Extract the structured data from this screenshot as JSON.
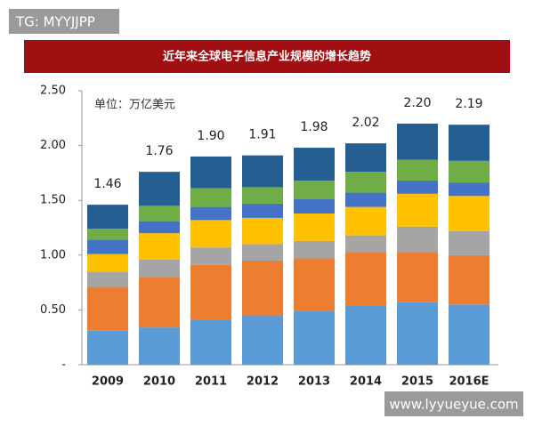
{
  "chart_data": {
    "type": "stacked-bar",
    "title": "近年来全球电子信息产业规模的增长趋势",
    "unit_note": "单位：万亿美元",
    "categories": [
      "2009",
      "2010",
      "2011",
      "2012",
      "2013",
      "2014",
      "2015",
      "2016E"
    ],
    "series": [
      {
        "color": "#5b9bd5",
        "values": [
          0.31,
          0.34,
          0.41,
          0.45,
          0.49,
          0.54,
          0.57,
          0.55
        ]
      },
      {
        "color": "#ed7d31",
        "values": [
          0.4,
          0.46,
          0.5,
          0.5,
          0.48,
          0.49,
          0.46,
          0.45
        ]
      },
      {
        "color": "#a5a5a5",
        "values": [
          0.14,
          0.16,
          0.16,
          0.15,
          0.16,
          0.15,
          0.23,
          0.22
        ]
      },
      {
        "color": "#ffc000",
        "values": [
          0.16,
          0.24,
          0.25,
          0.24,
          0.25,
          0.26,
          0.3,
          0.32
        ]
      },
      {
        "color": "#4472c4",
        "values": [
          0.13,
          0.11,
          0.12,
          0.13,
          0.13,
          0.13,
          0.12,
          0.12
        ]
      },
      {
        "color": "#70ad47",
        "values": [
          0.1,
          0.14,
          0.17,
          0.15,
          0.17,
          0.19,
          0.19,
          0.2
        ]
      },
      {
        "color": "#255e91",
        "values": [
          0.22,
          0.31,
          0.29,
          0.29,
          0.3,
          0.26,
          0.33,
          0.33
        ]
      }
    ],
    "totals": [
      1.46,
      1.76,
      1.9,
      1.91,
      1.98,
      2.02,
      2.2,
      2.19
    ],
    "total_labels": [
      "1.46",
      "1.76",
      "1.90",
      "1.91",
      "1.98",
      "2.02",
      "2.20",
      "2.19"
    ],
    "ylim": [
      0,
      2.5
    ],
    "yticks": [
      {
        "value": 0,
        "label": "-"
      },
      {
        "value": 0.5,
        "label": "0.50"
      },
      {
        "value": 1,
        "label": "1.00"
      },
      {
        "value": 1.5,
        "label": "1.50"
      },
      {
        "value": 2,
        "label": "2.00"
      },
      {
        "value": 2.5,
        "label": "2.50"
      }
    ],
    "grid": false
  },
  "overlays": [
    "TG: MYYJJPP",
    "www.lyyueyue.com"
  ]
}
